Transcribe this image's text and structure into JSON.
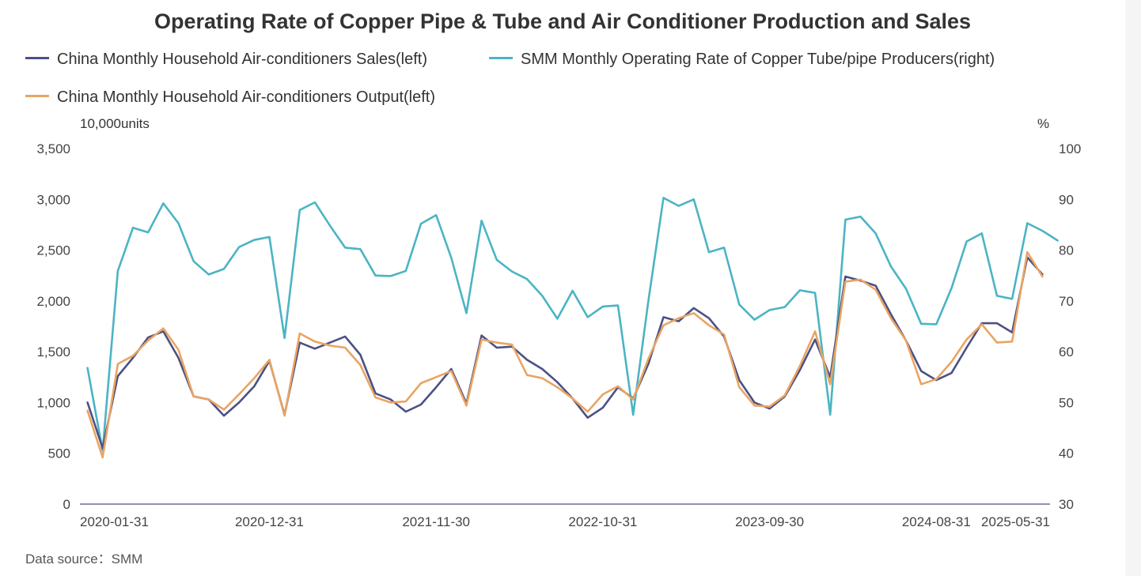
{
  "title": "Operating Rate of Copper Pipe & Tube and Air Conditioner Production and Sales",
  "legend": {
    "sales": "China Monthly Household Air-conditioners Sales(left)",
    "operating": "SMM Monthly Operating Rate of Copper Tube/pipe Producers(right)",
    "output": "China Monthly Household Air-conditioners Output(left)"
  },
  "left_unit": "10,000units",
  "right_unit": "%",
  "source": "Data source：SMM",
  "colors": {
    "sales": "#4b5183",
    "operating": "#4bb4c4",
    "output": "#eaa463",
    "axis": "#6b6f96"
  },
  "chart_data": {
    "type": "line",
    "x_tick_labels": [
      "2020-01-31",
      "2020-12-31",
      "2021-11-30",
      "2022-10-31",
      "2023-09-30",
      "2024-08-31",
      "2025-05-31"
    ],
    "x_tick_indices": [
      1,
      12,
      23,
      34,
      45,
      56,
      65
    ],
    "ylim_left": [
      0,
      3500
    ],
    "yticks_left": [
      "0",
      "500",
      "1,000",
      "1,500",
      "2,000",
      "2,500",
      "3,000",
      "3,500"
    ],
    "ylim_right": [
      30,
      100
    ],
    "yticks_right": [
      "30",
      "40",
      "50",
      "60",
      "70",
      "80",
      "90",
      "100"
    ],
    "series": [
      {
        "name": "China Monthly Household Air-conditioners Sales(left)",
        "axis": "left",
        "values": [
          1000,
          550,
          1260,
          1440,
          1640,
          1700,
          1440,
          1060,
          1030,
          870,
          1000,
          1160,
          1410,
          880,
          1590,
          1530,
          1590,
          1650,
          1470,
          1090,
          1030,
          910,
          980,
          1150,
          1330,
          990,
          1660,
          1540,
          1550,
          1420,
          1330,
          1200,
          1040,
          850,
          950,
          1150,
          1040,
          1380,
          1840,
          1800,
          1930,
          1830,
          1650,
          1220,
          1000,
          940,
          1060,
          1320,
          1620,
          1250,
          2240,
          2200,
          2150,
          1870,
          1610,
          1310,
          1220,
          1290,
          1540,
          1780,
          1780,
          1690,
          2430,
          2260
        ]
      },
      {
        "name": "SMM Monthly Operating Rate of Copper Tube/pipe Producers(right)",
        "axis": "right",
        "values": [
          56.8,
          40.5,
          75.9,
          84.4,
          83.5,
          89.2,
          85.3,
          77.8,
          75.2,
          76.3,
          80.6,
          82.0,
          82.6,
          62.7,
          87.9,
          89.4,
          84.8,
          80.5,
          80.2,
          75.0,
          74.9,
          75.9,
          85.2,
          86.9,
          78.5,
          67.6,
          85.8,
          78.1,
          75.8,
          74.3,
          71.0,
          66.5,
          72.0,
          66.8,
          68.9,
          69.1,
          47.6,
          70.0,
          90.3,
          88.7,
          90.0,
          79.6,
          80.5,
          69.3,
          66.3,
          68.2,
          68.8,
          72.1,
          71.6,
          47.6,
          86.0,
          86.6,
          83.3,
          76.8,
          72.4,
          65.5,
          65.4,
          72.5,
          81.7,
          83.3,
          71.0,
          70.4,
          85.3,
          83.8,
          81.9
        ]
      },
      {
        "name": "China Monthly Household Air-conditioners Output(left)",
        "axis": "left",
        "values": [
          920,
          460,
          1380,
          1460,
          1610,
          1730,
          1520,
          1060,
          1030,
          930,
          1080,
          1240,
          1420,
          870,
          1680,
          1600,
          1560,
          1540,
          1370,
          1050,
          1000,
          1010,
          1190,
          1250,
          1310,
          970,
          1620,
          1590,
          1570,
          1270,
          1240,
          1150,
          1040,
          910,
          1080,
          1160,
          1030,
          1430,
          1760,
          1830,
          1880,
          1760,
          1670,
          1150,
          970,
          960,
          1070,
          1360,
          1700,
          1180,
          2190,
          2210,
          2110,
          1830,
          1610,
          1180,
          1230,
          1400,
          1620,
          1770,
          1590,
          1600,
          2480,
          2240
        ]
      }
    ]
  }
}
